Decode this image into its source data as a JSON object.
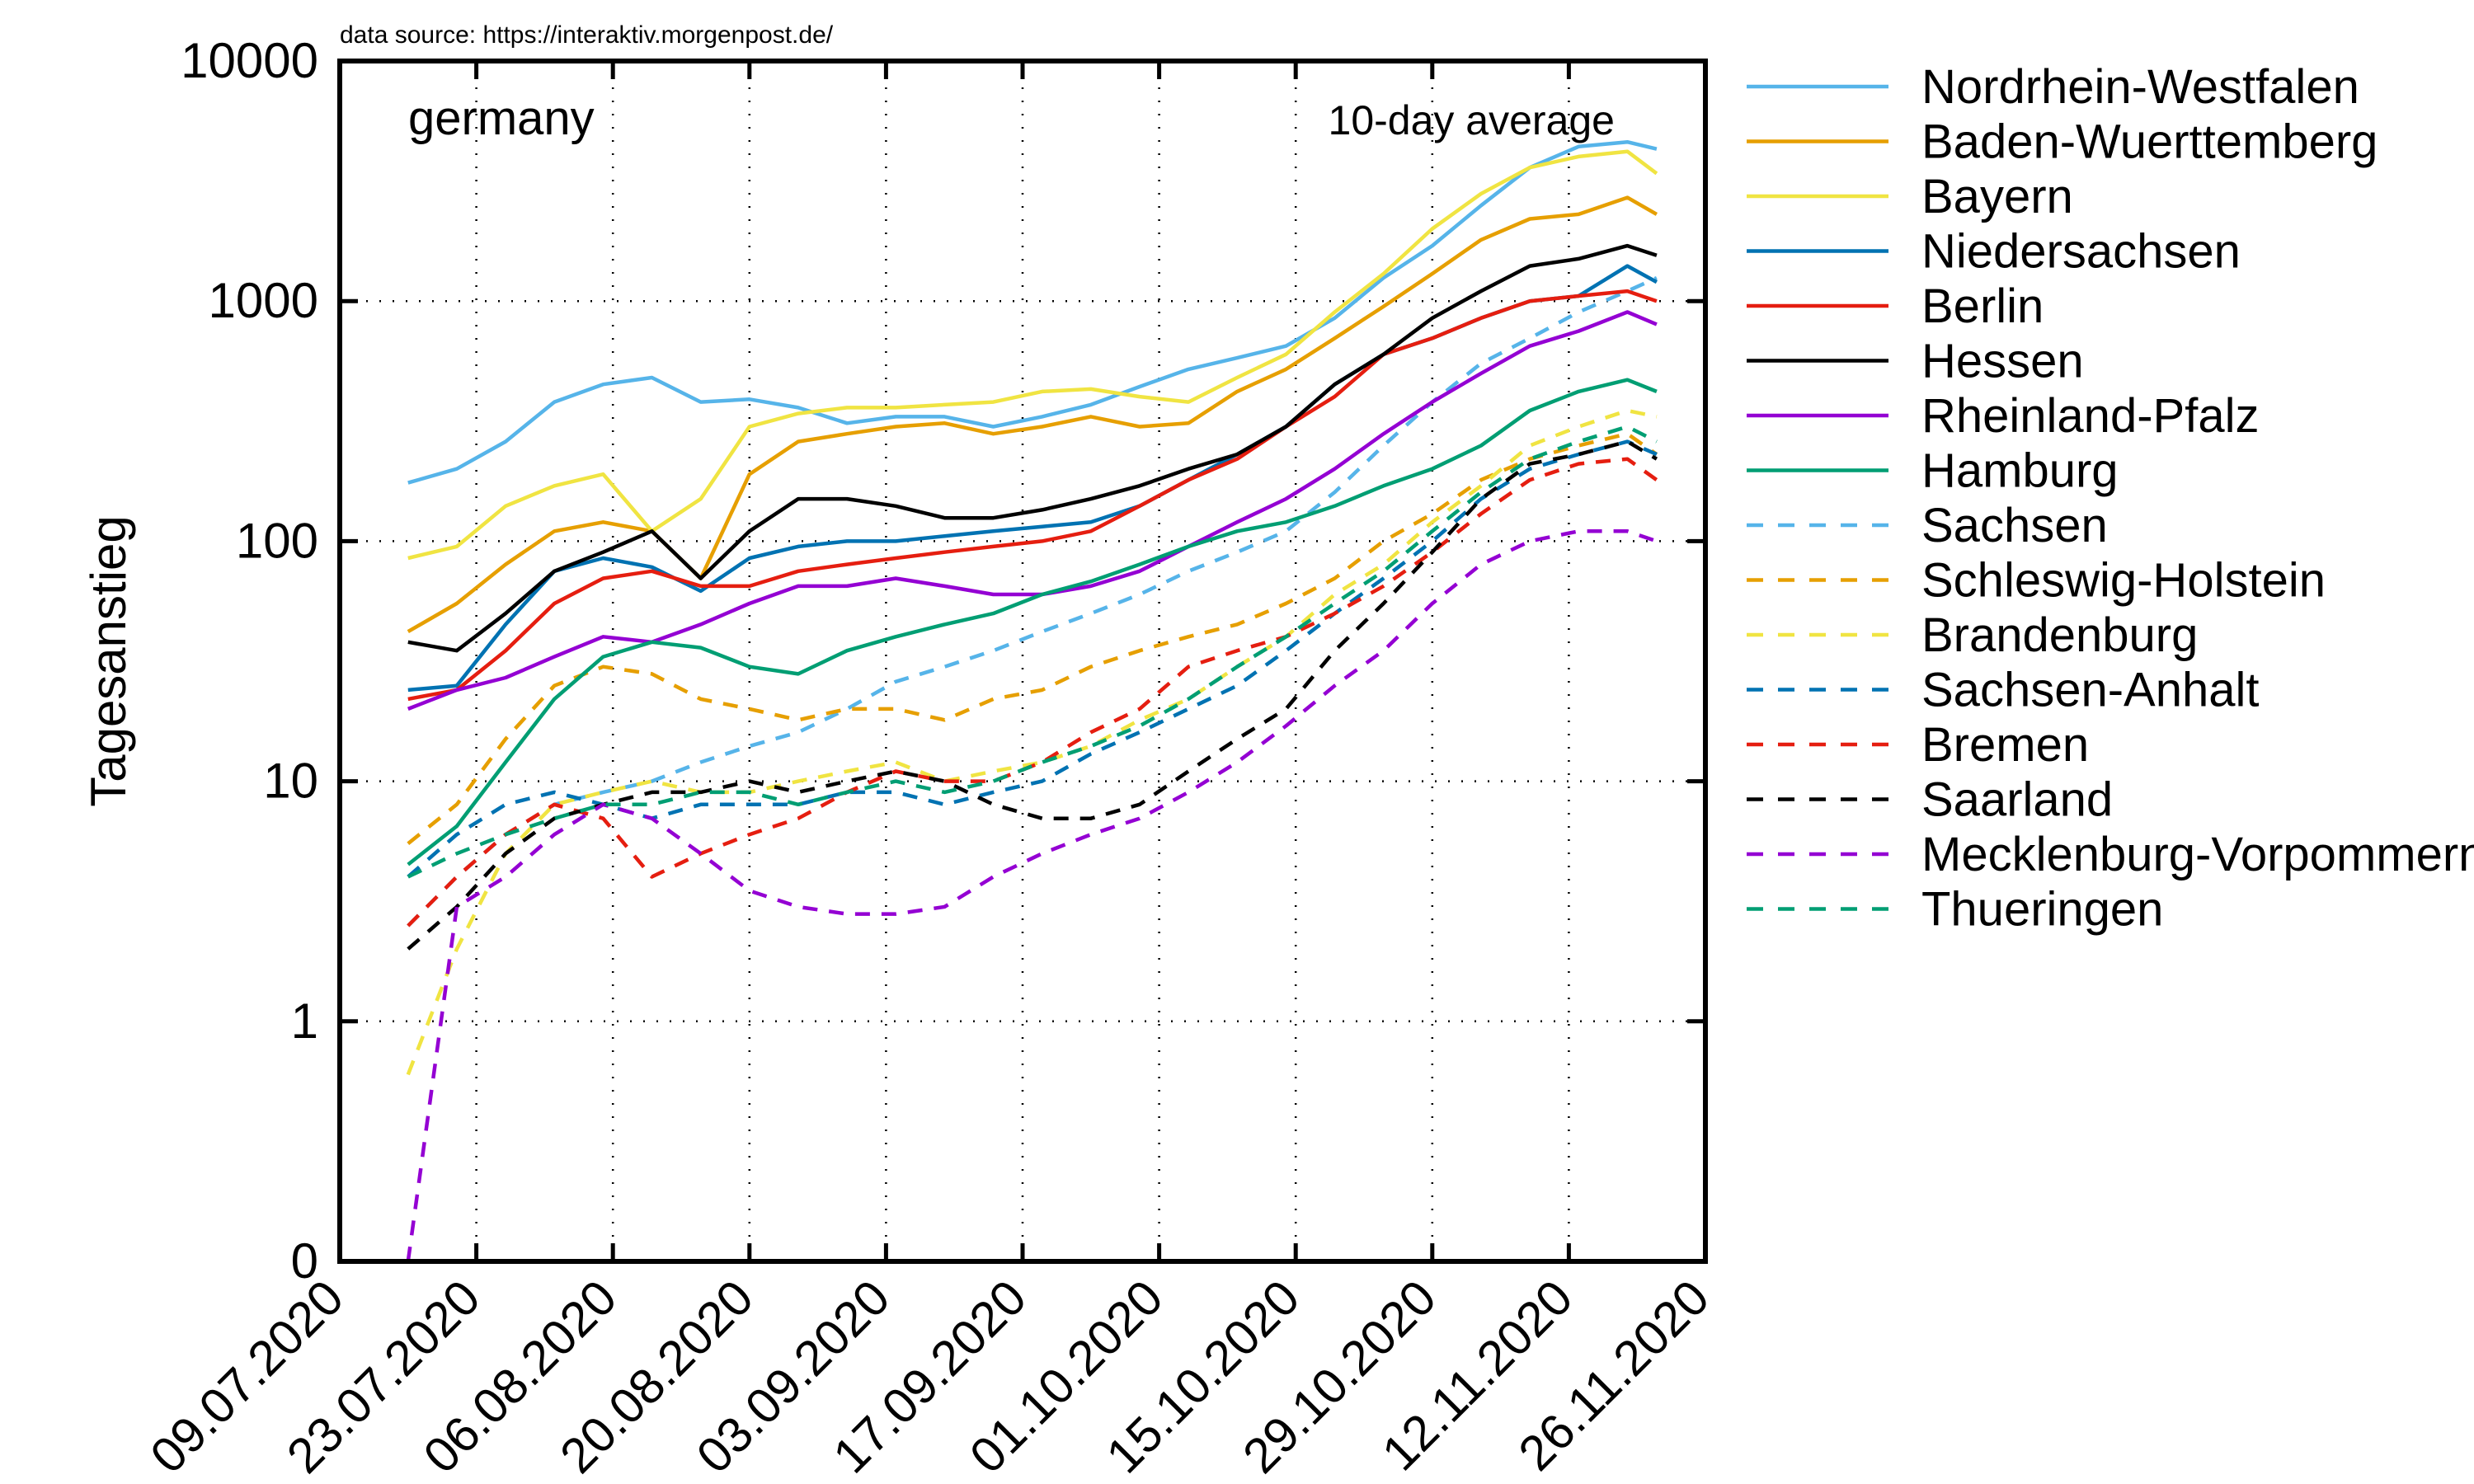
{
  "chart_data": {
    "type": "line",
    "source_note": "data source: https://interaktiv.morgenpost.de/",
    "title": "germany",
    "annotation": "10-day average",
    "ylabel": "Tagesanstieg",
    "xlabel": "",
    "yscale": "log",
    "y_ticks": [
      "0",
      "1",
      "10",
      "100",
      "1000",
      "10000"
    ],
    "x_ticks": [
      "09.07.2020",
      "23.07.2020",
      "06.08.2020",
      "20.08.2020",
      "03.09.2020",
      "17.09.2020",
      "01.10.2020",
      "15.10.2020",
      "29.10.2020",
      "12.11.2020",
      "26.11.2020"
    ],
    "grid": true,
    "legend_position": "right outside",
    "x_dates": [
      "2020-07-16",
      "2020-07-21",
      "2020-07-26",
      "2020-07-31",
      "2020-08-05",
      "2020-08-10",
      "2020-08-15",
      "2020-08-20",
      "2020-08-25",
      "2020-08-30",
      "2020-09-04",
      "2020-09-09",
      "2020-09-14",
      "2020-09-19",
      "2020-09-24",
      "2020-09-29",
      "2020-10-04",
      "2020-10-09",
      "2020-10-14",
      "2020-10-19",
      "2020-10-24",
      "2020-10-29",
      "2020-11-03",
      "2020-11-08",
      "2020-11-13",
      "2020-11-18",
      "2020-11-21"
    ],
    "series": [
      {
        "name": "Nordrhein-Westfalen",
        "color": "#56b4e9",
        "style": "solid",
        "values": [
          175,
          200,
          260,
          380,
          450,
          480,
          380,
          390,
          360,
          310,
          330,
          330,
          300,
          330,
          370,
          440,
          520,
          580,
          650,
          850,
          1250,
          1700,
          2500,
          3600,
          4400,
          4600,
          4300
        ]
      },
      {
        "name": "Baden-Wuerttemberg",
        "color": "#e69f00",
        "style": "solid",
        "values": [
          42,
          55,
          80,
          110,
          120,
          110,
          70,
          190,
          260,
          280,
          300,
          310,
          280,
          300,
          330,
          300,
          310,
          420,
          520,
          700,
          950,
          1300,
          1800,
          2200,
          2300,
          2700,
          2300
        ]
      },
      {
        "name": "Bayern",
        "color": "#f0e442",
        "style": "solid",
        "values": [
          85,
          95,
          140,
          170,
          190,
          110,
          150,
          300,
          340,
          360,
          360,
          370,
          380,
          420,
          430,
          400,
          380,
          480,
          600,
          900,
          1300,
          2000,
          2800,
          3600,
          4000,
          4200,
          3400
        ]
      },
      {
        "name": "Niedersachsen",
        "color": "#0072b2",
        "style": "solid",
        "values": [
          24,
          25,
          45,
          75,
          85,
          78,
          62,
          85,
          95,
          100,
          100,
          105,
          110,
          115,
          120,
          140,
          180,
          230,
          300,
          450,
          600,
          700,
          850,
          1000,
          1050,
          1400,
          1200
        ]
      },
      {
        "name": "Berlin",
        "color": "#e51e10",
        "style": "solid",
        "values": [
          22,
          24,
          35,
          55,
          70,
          75,
          65,
          65,
          75,
          80,
          85,
          90,
          95,
          100,
          110,
          140,
          180,
          220,
          300,
          400,
          600,
          700,
          850,
          1000,
          1050,
          1100,
          1000
        ]
      },
      {
        "name": "Hessen",
        "color": "#000000",
        "style": "solid",
        "values": [
          38,
          35,
          50,
          75,
          90,
          110,
          70,
          110,
          150,
          150,
          140,
          125,
          125,
          135,
          150,
          170,
          200,
          230,
          300,
          450,
          600,
          850,
          1100,
          1400,
          1500,
          1700,
          1550
        ]
      },
      {
        "name": "Rheinland-Pfalz",
        "color": "#9400d3",
        "style": "solid",
        "values": [
          20,
          24,
          27,
          33,
          40,
          38,
          45,
          55,
          65,
          65,
          70,
          65,
          60,
          60,
          65,
          75,
          95,
          120,
          150,
          200,
          280,
          380,
          500,
          650,
          750,
          900,
          800
        ]
      },
      {
        "name": "Hamburg",
        "color": "#009e73",
        "style": "solid",
        "values": [
          4.5,
          6.5,
          12,
          22,
          33,
          38,
          36,
          30,
          28,
          35,
          40,
          45,
          50,
          60,
          68,
          80,
          95,
          110,
          120,
          140,
          170,
          200,
          250,
          350,
          420,
          470,
          420
        ]
      },
      {
        "name": "Sachsen",
        "color": "#56b4e9",
        "style": "dashed",
        "values": [
          2.5,
          4,
          6,
          8,
          9,
          10,
          12,
          14,
          16,
          20,
          26,
          30,
          35,
          42,
          50,
          60,
          75,
          90,
          110,
          160,
          250,
          380,
          550,
          700,
          900,
          1100,
          1250
        ]
      },
      {
        "name": "Schleswig-Holstein",
        "color": "#e69f00",
        "style": "dashed",
        "values": [
          5.5,
          8,
          15,
          25,
          30,
          28,
          22,
          20,
          18,
          20,
          20,
          18,
          22,
          24,
          30,
          35,
          40,
          45,
          55,
          70,
          100,
          130,
          180,
          220,
          250,
          280,
          230
        ]
      },
      {
        "name": "Brandenburg",
        "color": "#f0e442",
        "style": "dashed",
        "values": [
          0.6,
          2,
          5,
          8,
          9,
          10,
          9,
          9,
          10,
          11,
          12,
          10,
          11,
          12,
          14,
          18,
          22,
          30,
          40,
          60,
          80,
          120,
          170,
          250,
          300,
          350,
          330
        ]
      },
      {
        "name": "Sachsen-Anhalt",
        "color": "#0072b2",
        "style": "dashed",
        "values": [
          4,
          6,
          8,
          9,
          8,
          7,
          8,
          8,
          8,
          9,
          9,
          8,
          9,
          10,
          13,
          16,
          20,
          25,
          35,
          50,
          70,
          100,
          150,
          200,
          230,
          260,
          230
        ]
      },
      {
        "name": "Bremen",
        "color": "#e51e10",
        "style": "dashed",
        "values": [
          2.5,
          4,
          6,
          8,
          7,
          4,
          5,
          6,
          7,
          9,
          11,
          10,
          10,
          12,
          16,
          20,
          30,
          35,
          40,
          50,
          65,
          90,
          130,
          180,
          210,
          220,
          180
        ]
      },
      {
        "name": "Saarland",
        "color": "#000000",
        "style": "dashed",
        "values": [
          2,
          3,
          5,
          7,
          8,
          9,
          9,
          10,
          9,
          10,
          11,
          10,
          8,
          7,
          7,
          8,
          11,
          15,
          20,
          35,
          55,
          90,
          150,
          210,
          230,
          260,
          220
        ]
      },
      {
        "name": "Mecklenburg-Vorpommern",
        "color": "#9400d3",
        "style": "dashed",
        "values": [
          0.0,
          3,
          4,
          6,
          8,
          7,
          5,
          3.5,
          3,
          2.8,
          2.8,
          3,
          4,
          5,
          6,
          7,
          9,
          12,
          17,
          25,
          35,
          55,
          80,
          100,
          110,
          110,
          100
        ]
      },
      {
        "name": "Thueringen",
        "color": "#009e73",
        "style": "dashed",
        "values": [
          4,
          5,
          6,
          7,
          8,
          8,
          9,
          9,
          8,
          9,
          10,
          9,
          10,
          12,
          14,
          17,
          22,
          30,
          40,
          55,
          75,
          110,
          160,
          220,
          260,
          300,
          260
        ]
      }
    ]
  }
}
